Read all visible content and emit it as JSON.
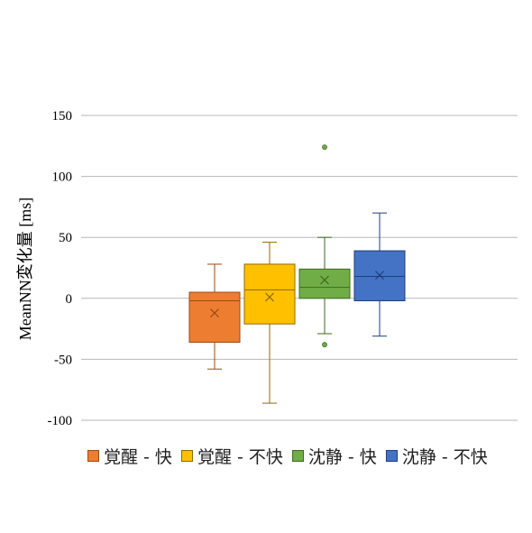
{
  "chart_data": {
    "type": "box",
    "title": "",
    "xlabel": "",
    "ylabel": "MeanNN変化量 [ms]",
    "ylim": [
      -100,
      150
    ],
    "yticks": [
      150,
      100,
      50,
      0,
      -50,
      -100
    ],
    "grid": true,
    "legend_position": "bottom",
    "series": [
      {
        "name": "覚醒 - 快",
        "color": "#ED7D31",
        "stroke": "#9C4A12",
        "min": -58,
        "q1": -36,
        "median": -2,
        "q3": 5,
        "max": 28,
        "mean": -12,
        "outliers": []
      },
      {
        "name": "覚醒 - 不快",
        "color": "#FFC000",
        "stroke": "#8F6A00",
        "min": -86,
        "q1": -21,
        "median": 7,
        "q3": 28,
        "max": 46,
        "mean": 1,
        "outliers": []
      },
      {
        "name": "沈静 - 快",
        "color": "#70AD47",
        "stroke": "#3E6A22",
        "min": -29,
        "q1": 0,
        "median": 9,
        "q3": 24,
        "max": 50,
        "mean": 15,
        "outliers": [
          124,
          -38
        ]
      },
      {
        "name": "沈静 - 不快",
        "color": "#4472C4",
        "stroke": "#1F3F7A",
        "min": -31,
        "q1": -2,
        "median": 18,
        "q3": 39,
        "max": 70,
        "mean": 19,
        "outliers": []
      }
    ]
  }
}
